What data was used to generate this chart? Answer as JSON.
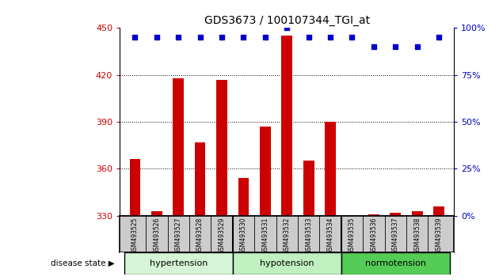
{
  "title": "GDS3673 / 100107344_TGI_at",
  "samples": [
    "GSM493525",
    "GSM493526",
    "GSM493527",
    "GSM493528",
    "GSM493529",
    "GSM493530",
    "GSM493531",
    "GSM493532",
    "GSM493533",
    "GSM493534",
    "GSM493535",
    "GSM493536",
    "GSM493537",
    "GSM493538",
    "GSM493539"
  ],
  "counts": [
    366,
    333,
    418,
    377,
    417,
    354,
    387,
    445,
    365,
    390,
    330,
    331,
    332,
    333,
    336
  ],
  "percentile": [
    95,
    95,
    95,
    95,
    95,
    95,
    95,
    100,
    95,
    95,
    95,
    90,
    90,
    90,
    95
  ],
  "groups": [
    {
      "label": "hypertension",
      "start": 0,
      "end": 4,
      "color": "#d6f5d6"
    },
    {
      "label": "hypotension",
      "start": 5,
      "end": 9,
      "color": "#c0f0c0"
    },
    {
      "label": "normotension",
      "start": 10,
      "end": 14,
      "color": "#55cc55"
    }
  ],
  "ylim_left": [
    330,
    450
  ],
  "ylim_right": [
    0,
    100
  ],
  "yticks_left": [
    330,
    360,
    390,
    420,
    450
  ],
  "yticks_right": [
    0,
    25,
    50,
    75,
    100
  ],
  "bar_color": "#cc0000",
  "dot_color": "#0000cc",
  "bar_width": 0.5,
  "background_color": "#ffffff",
  "label_bg": "#cccccc",
  "grid_yticks": [
    360,
    390,
    420
  ]
}
